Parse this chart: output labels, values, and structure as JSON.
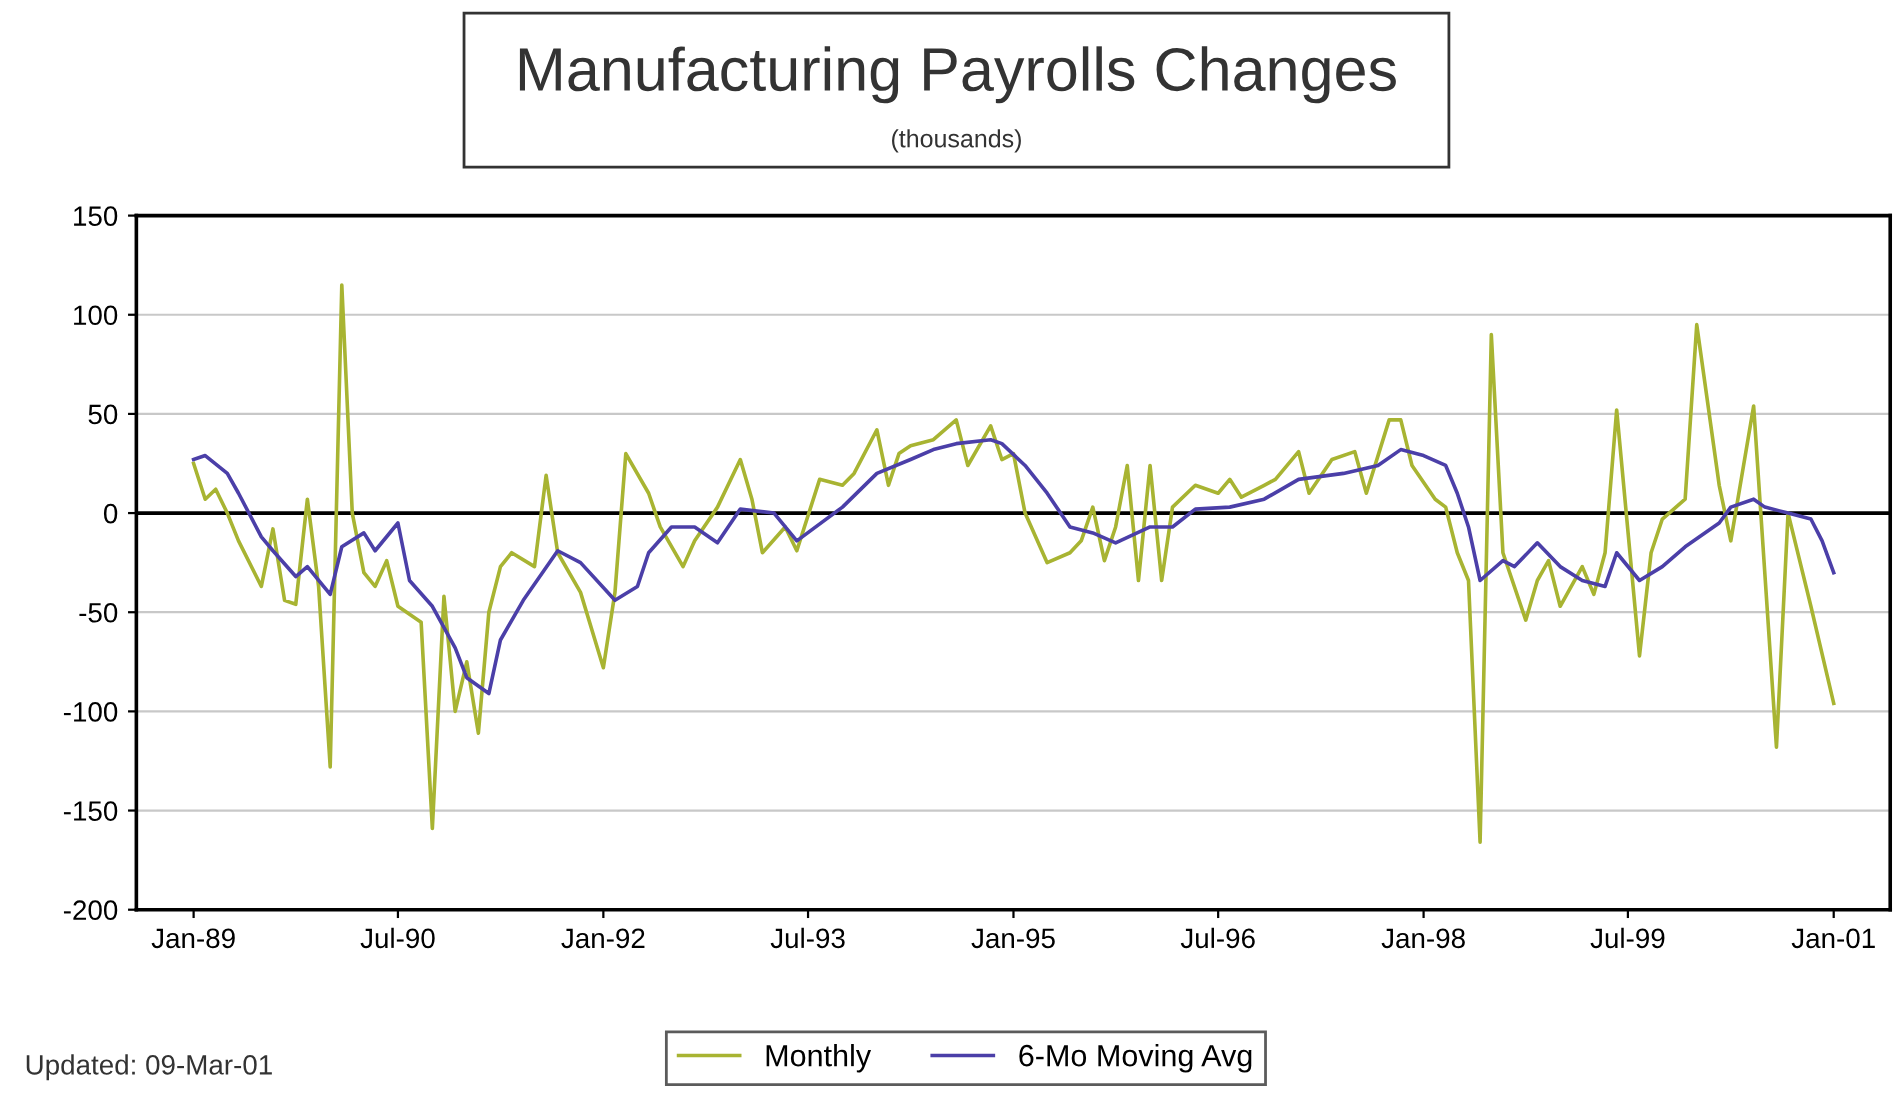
{
  "chart_data": {
    "type": "line",
    "title": "Manufacturing Payrolls Changes",
    "subtitle": "(thousands)",
    "annotations": [
      "Updated: 09-Mar-01"
    ],
    "series": [
      {
        "name": "Monthly",
        "color": "#a8b432",
        "x": [
          "1989-01",
          "1989-02",
          "1989-03",
          "1989-04",
          "1989-05",
          "1989-07",
          "1989-08",
          "1989-09",
          "1989-10",
          "1989-11",
          "1989-12",
          "1990-01",
          "1990-02",
          "1990-03",
          "1990-04",
          "1990-05",
          "1990-06",
          "1990-07",
          "1990-09",
          "1990-10",
          "1990-11",
          "1990-12",
          "1991-01",
          "1991-02",
          "1991-03",
          "1991-04",
          "1991-05",
          "1991-07",
          "1991-08",
          "1991-09",
          "1991-11",
          "1992-01",
          "1992-02",
          "1992-03",
          "1992-05",
          "1992-06",
          "1992-08",
          "1992-09",
          "1992-11",
          "1993-01",
          "1993-02",
          "1993-03",
          "1993-05",
          "1993-06",
          "1993-08",
          "1993-10",
          "1993-11",
          "1994-01",
          "1994-02",
          "1994-03",
          "1994-04",
          "1994-06",
          "1994-08",
          "1994-09",
          "1994-11",
          "1994-12",
          "1995-01",
          "1995-02",
          "1995-04",
          "1995-06",
          "1995-07",
          "1995-08",
          "1995-09",
          "1995-10",
          "1995-11",
          "1995-12",
          "1996-01",
          "1996-02",
          "1996-03",
          "1996-05",
          "1996-07",
          "1996-08",
          "1996-09",
          "1996-11",
          "1996-12",
          "1997-02",
          "1997-03",
          "1997-05",
          "1997-07",
          "1997-08",
          "1997-10",
          "1997-11",
          "1997-12",
          "1998-02",
          "1998-03",
          "1998-04",
          "1998-05",
          "1998-06",
          "1998-07",
          "1998-08",
          "1998-10",
          "1998-11",
          "1998-12",
          "1999-01",
          "1999-03",
          "1999-04",
          "1999-05",
          "1999-06",
          "1999-08",
          "1999-09",
          "1999-10",
          "1999-12",
          "2000-01",
          "2000-03",
          "2000-04",
          "2000-06",
          "2000-08",
          "2000-09",
          "2000-11",
          "2001-01"
        ],
        "values": [
          25,
          7,
          12,
          0,
          -14,
          -37,
          -8,
          -44,
          -46,
          7,
          -37,
          -128,
          115,
          0,
          -30,
          -37,
          -24,
          -47,
          -55,
          -159,
          -42,
          -100,
          -75,
          -111,
          -50,
          -27,
          -20,
          -27,
          19,
          -20,
          -40,
          -78,
          -40,
          30,
          10,
          -7,
          -27,
          -14,
          3,
          27,
          7,
          -20,
          -7,
          -19,
          17,
          14,
          20,
          42,
          14,
          30,
          34,
          37,
          47,
          24,
          44,
          27,
          30,
          0,
          -25,
          -20,
          -14,
          3,
          -24,
          -7,
          24,
          -34,
          24,
          -34,
          3,
          14,
          10,
          17,
          8,
          14,
          17,
          31,
          10,
          27,
          31,
          10,
          47,
          47,
          24,
          7,
          3,
          -20,
          -34,
          -166,
          90,
          -20,
          -54,
          -34,
          -24,
          -47,
          -27,
          -41,
          -20,
          52,
          -72,
          -20,
          -3,
          7,
          95,
          14,
          -14,
          54,
          -118,
          0,
          -47,
          -96
        ]
      },
      {
        "name": "6-Mo Moving Avg",
        "color": "#4b3fa8",
        "x": [
          "1989-01",
          "1989-02",
          "1989-04",
          "1989-05",
          "1989-07",
          "1989-08",
          "1989-10",
          "1989-11",
          "1990-01",
          "1990-02",
          "1990-04",
          "1990-05",
          "1990-07",
          "1990-08",
          "1990-10",
          "1990-12",
          "1991-01",
          "1991-03",
          "1991-04",
          "1991-06",
          "1991-09",
          "1991-11",
          "1992-02",
          "1992-04",
          "1992-05",
          "1992-07",
          "1992-09",
          "1992-11",
          "1993-01",
          "1993-04",
          "1993-06",
          "1993-10",
          "1994-01",
          "1994-04",
          "1994-06",
          "1994-08",
          "1994-11",
          "1994-12",
          "1995-02",
          "1995-04",
          "1995-06",
          "1995-08",
          "1995-10",
          "1996-01",
          "1996-03",
          "1996-05",
          "1996-08",
          "1996-11",
          "1997-02",
          "1997-06",
          "1997-09",
          "1997-11",
          "1998-01",
          "1998-03",
          "1998-04",
          "1998-05",
          "1998-06",
          "1998-08",
          "1998-09",
          "1998-11",
          "1999-01",
          "1999-03",
          "1999-05",
          "1999-06",
          "1999-08",
          "1999-10",
          "1999-12",
          "2000-03",
          "2000-04",
          "2000-06",
          "2000-07",
          "2000-09",
          "2000-11",
          "2000-12",
          "2001-01"
        ],
        "values": [
          27,
          29,
          20,
          10,
          -12,
          -19,
          -32,
          -27,
          -41,
          -17,
          -10,
          -19,
          -5,
          -34,
          -47,
          -68,
          -83,
          -91,
          -64,
          -44,
          -19,
          -25,
          -44,
          -37,
          -20,
          -7,
          -7,
          -15,
          2,
          0,
          -14,
          3,
          20,
          27,
          32,
          35,
          37,
          35,
          24,
          10,
          -7,
          -10,
          -15,
          -7,
          -7,
          2,
          3,
          7,
          17,
          20,
          24,
          32,
          29,
          24,
          10,
          -7,
          -34,
          -24,
          -27,
          -15,
          -27,
          -34,
          -37,
          -20,
          -34,
          -27,
          -17,
          -5,
          3,
          7,
          3,
          0,
          -3,
          -14,
          -30
        ]
      }
    ],
    "xlim": [
      "1988-08",
      "2001-06"
    ],
    "xticks": [
      {
        "value": "1989-01",
        "label": "Jan-89"
      },
      {
        "value": "1990-07",
        "label": "Jul-90"
      },
      {
        "value": "1992-01",
        "label": "Jan-92"
      },
      {
        "value": "1993-07",
        "label": "Jul-93"
      },
      {
        "value": "1995-01",
        "label": "Jan-95"
      },
      {
        "value": "1996-07",
        "label": "Jul-96"
      },
      {
        "value": "1998-01",
        "label": "Jan-98"
      },
      {
        "value": "1999-07",
        "label": "Jul-99"
      },
      {
        "value": "2001-01",
        "label": "Jan-01"
      }
    ],
    "ylim": [
      -200,
      150
    ],
    "yticks": [
      -200,
      -150,
      -100,
      -50,
      0,
      50,
      100,
      150
    ],
    "ref_lines": [
      {
        "axis": "y",
        "value": 0,
        "color": "#000000"
      }
    ],
    "grid": "y",
    "legend": "bottom",
    "marker": "none",
    "line_style": "solid"
  }
}
